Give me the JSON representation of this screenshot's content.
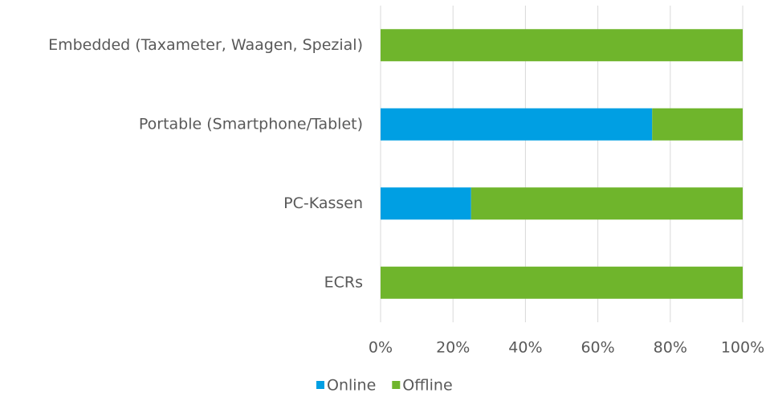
{
  "chart_data": {
    "type": "stacked_barh",
    "categories": [
      "Embedded (Taxameter, Waagen, Spezial)",
      "Portable (Smartphone/Tablet)",
      "PC-Kassen",
      "ECRs"
    ],
    "series": [
      {
        "name": "Online",
        "color": "#009fe3",
        "values": [
          0,
          75,
          25,
          0
        ]
      },
      {
        "name": "Offline",
        "color": "#6fb52c",
        "values": [
          100,
          25,
          75,
          100
        ]
      }
    ],
    "xlim": [
      0,
      100
    ],
    "xticks": [
      {
        "value": 0,
        "label": "0%"
      },
      {
        "value": 20,
        "label": "20%"
      },
      {
        "value": 40,
        "label": "40%"
      },
      {
        "value": 60,
        "label": "60%"
      },
      {
        "value": 80,
        "label": "80%"
      },
      {
        "value": 100,
        "label": "100%"
      }
    ],
    "grid": true,
    "legend": "bottom"
  }
}
